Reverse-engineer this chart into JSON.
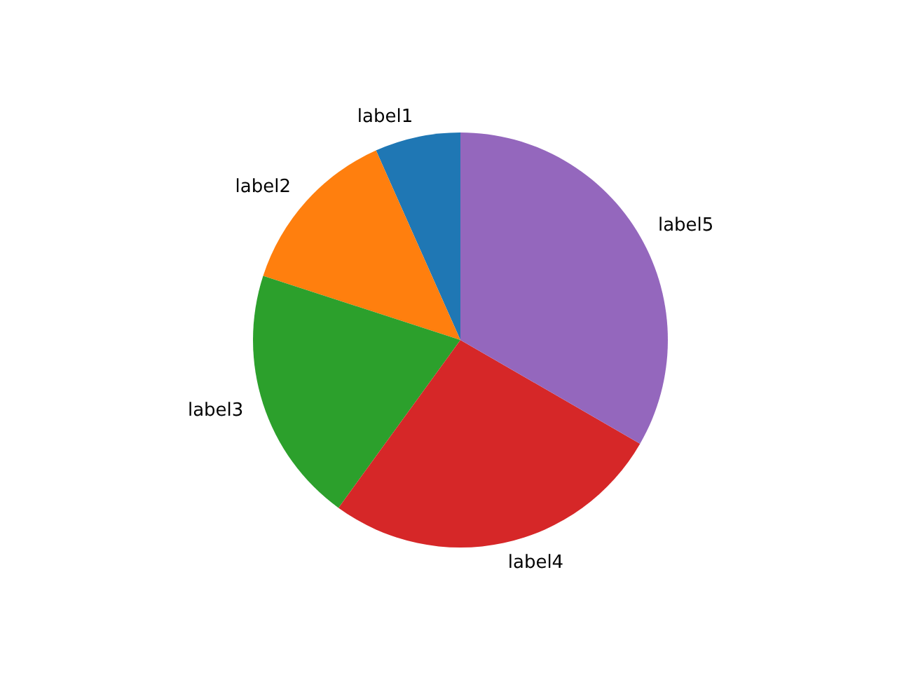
{
  "chart_data": {
    "type": "pie",
    "categories": [
      "label1",
      "label2",
      "label3",
      "label4",
      "label5"
    ],
    "values": [
      6.67,
      13.33,
      20,
      26.67,
      33.33
    ],
    "colors": [
      "#1f77b4",
      "#ff7f0e",
      "#2ca02c",
      "#d62728",
      "#9467bd"
    ]
  }
}
